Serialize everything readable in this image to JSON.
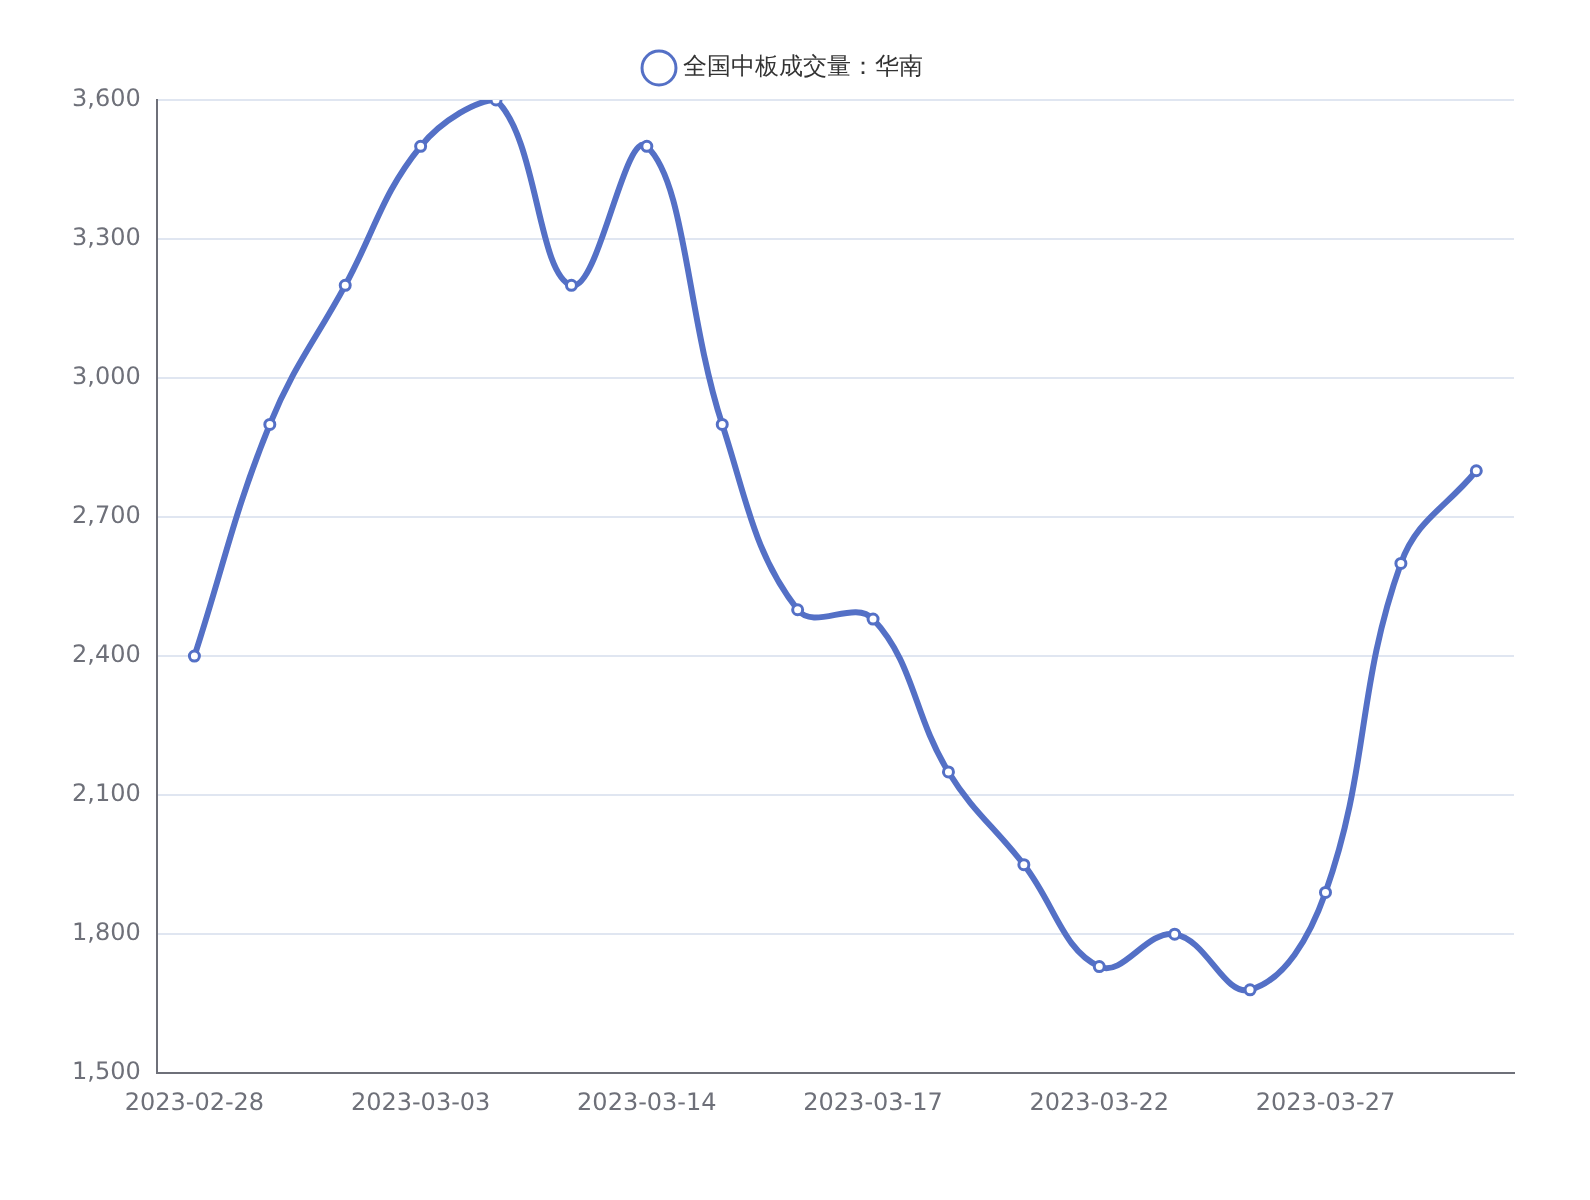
{
  "chart_data": {
    "type": "line",
    "categories": [
      "2023-02-28",
      null,
      null,
      "2023-03-03",
      null,
      null,
      "2023-03-14",
      null,
      null,
      "2023-03-17",
      null,
      null,
      "2023-03-22",
      null,
      null,
      "2023-03-27",
      null,
      null
    ],
    "series": [
      {
        "name": "全国中板成交量：华南",
        "color": "#5470c6",
        "values": [
          2400,
          2900,
          3200,
          3500,
          3600,
          3200,
          3500,
          2900,
          2500,
          2480,
          2150,
          1950,
          1730,
          1800,
          1680,
          1890,
          2600,
          2800
        ]
      }
    ],
    "ylim": [
      1500,
      3600
    ],
    "yticks": [
      {
        "value": 1500,
        "label": "1,500"
      },
      {
        "value": 1800,
        "label": "1,800"
      },
      {
        "value": 2100,
        "label": "2,100"
      },
      {
        "value": 2400,
        "label": "2,400"
      },
      {
        "value": 2700,
        "label": "2,700"
      },
      {
        "value": 3000,
        "label": "3,000"
      },
      {
        "value": 3300,
        "label": "3,300"
      },
      {
        "value": 3600,
        "label": "3,600"
      }
    ],
    "grid": "y",
    "legend": "top",
    "marker": "circle",
    "line_style": "solid"
  }
}
